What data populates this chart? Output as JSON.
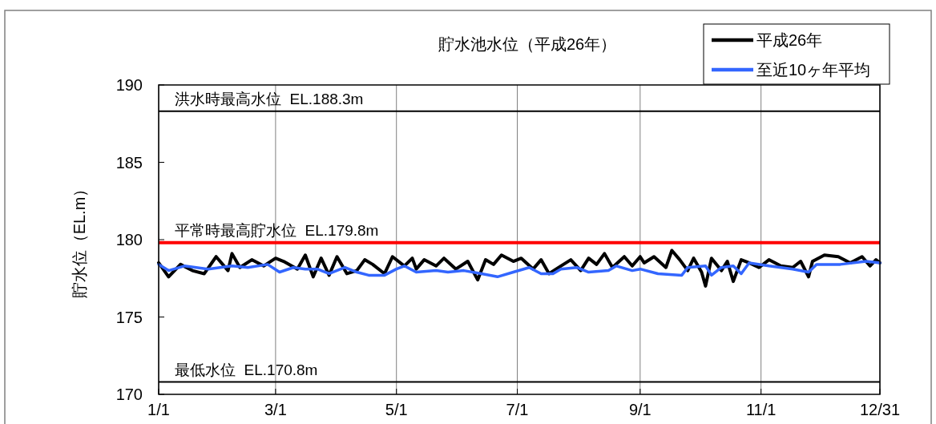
{
  "chart_data": {
    "type": "line",
    "title": "貯水池水位（平成26年）",
    "ylabel": "貯水位（EL.m）",
    "xlim": [
      "--01-01",
      "--12-31"
    ],
    "xticks": [
      {
        "value": "--01-01",
        "label": "1/1"
      },
      {
        "value": "--03-01",
        "label": "3/1"
      },
      {
        "value": "--05-01",
        "label": "5/1"
      },
      {
        "value": "--07-01",
        "label": "7/1"
      },
      {
        "value": "--09-01",
        "label": "9/1"
      },
      {
        "value": "--11-01",
        "label": "11/1"
      },
      {
        "value": "--12-31",
        "label": "12/31"
      }
    ],
    "ylim": [
      170,
      190
    ],
    "yticks": [
      170,
      175,
      180,
      185,
      190
    ],
    "grid": "x",
    "legend": "top right",
    "marker": "none",
    "line_style": "solid",
    "ref_lines": [
      {
        "axis": "y",
        "value": 188.3,
        "label": "洪水時最高水位  EL.188.3m",
        "color": "#000000"
      },
      {
        "axis": "y",
        "value": 179.8,
        "label": "平常時最高貯水位  EL.179.8m",
        "color": "#ff0000"
      },
      {
        "axis": "y",
        "value": 170.8,
        "label": "最低水位  EL.170.8m",
        "color": "#000000"
      }
    ],
    "series": [
      {
        "name": "平成26年",
        "color": "#000000",
        "x": [
          "--01-01",
          "--01-06",
          "--01-12",
          "--01-18",
          "--01-24",
          "--01-30",
          "--02-05",
          "--02-07",
          "--02-11",
          "--02-17",
          "--02-23",
          "--03-01",
          "--03-05",
          "--03-12",
          "--03-16",
          "--03-20",
          "--03-24",
          "--03-28",
          "--04-01",
          "--04-06",
          "--04-11",
          "--04-15",
          "--04-19",
          "--04-25",
          "--04-29",
          "--05-05",
          "--05-09",
          "--05-11",
          "--05-15",
          "--05-21",
          "--05-25",
          "--05-31",
          "--06-06",
          "--06-11",
          "--06-15",
          "--06-19",
          "--06-23",
          "--06-29",
          "--07-03",
          "--07-09",
          "--07-13",
          "--07-17",
          "--07-23",
          "--07-28",
          "--08-02",
          "--08-06",
          "--08-10",
          "--08-14",
          "--08-18",
          "--08-24",
          "--08-28",
          "--09-01",
          "--09-03",
          "--09-08",
          "--09-14",
          "--09-17",
          "--09-21",
          "--09-25",
          "--09-28",
          "--10-02",
          "--10-04",
          "--10-07",
          "--10-12",
          "--10-15",
          "--10-18",
          "--10-22",
          "--10-26",
          "--10-31",
          "--11-05",
          "--11-11",
          "--11-17",
          "--11-21",
          "--11-25",
          "--11-27",
          "--12-03",
          "--12-10",
          "--12-16",
          "--12-22",
          "--12-26",
          "--12-29",
          "--12-31"
        ],
        "values": [
          178.5,
          177.6,
          178.4,
          178.0,
          177.8,
          178.9,
          178.0,
          179.1,
          178.2,
          178.7,
          178.3,
          178.8,
          178.6,
          178.1,
          179.0,
          177.6,
          178.8,
          177.7,
          178.9,
          177.8,
          178.0,
          178.7,
          178.4,
          177.8,
          178.9,
          178.3,
          178.8,
          178.1,
          178.7,
          178.3,
          178.8,
          178.1,
          178.6,
          177.4,
          178.7,
          178.4,
          179.0,
          178.6,
          178.8,
          178.1,
          178.7,
          177.8,
          178.3,
          178.7,
          178.0,
          178.8,
          178.4,
          179.1,
          178.2,
          178.9,
          178.3,
          178.9,
          178.5,
          178.9,
          178.2,
          179.3,
          178.7,
          178.0,
          178.8,
          177.9,
          177.0,
          178.8,
          178.0,
          178.6,
          177.3,
          178.7,
          178.5,
          178.2,
          178.7,
          178.3,
          178.2,
          178.6,
          177.6,
          178.6,
          179.0,
          178.9,
          178.5,
          178.9,
          178.3,
          178.7,
          178.5
        ]
      },
      {
        "name": "至近10ヶ年平均",
        "color": "#3366ff",
        "x": [
          "--01-01",
          "--01-06",
          "--01-14",
          "--01-26",
          "--02-07",
          "--02-15",
          "--02-25",
          "--03-03",
          "--03-10",
          "--03-16",
          "--03-22",
          "--03-28",
          "--04-05",
          "--04-11",
          "--04-17",
          "--04-25",
          "--05-01",
          "--05-05",
          "--05-11",
          "--05-21",
          "--05-27",
          "--06-04",
          "--06-13",
          "--06-21",
          "--06-29",
          "--07-07",
          "--07-13",
          "--07-19",
          "--07-23",
          "--07-31",
          "--08-06",
          "--08-16",
          "--08-20",
          "--08-28",
          "--09-01",
          "--09-10",
          "--09-22",
          "--09-25",
          "--10-04",
          "--10-07",
          "--10-12",
          "--10-18",
          "--10-22",
          "--10-26",
          "--11-05",
          "--11-17",
          "--11-25",
          "--11-29",
          "--12-11",
          "--12-24",
          "--12-31"
        ],
        "values": [
          178.4,
          178.0,
          178.3,
          178.1,
          178.3,
          178.2,
          178.4,
          177.9,
          178.2,
          178.1,
          178.1,
          177.8,
          178.2,
          177.9,
          177.7,
          177.7,
          178.1,
          178.3,
          177.9,
          178.0,
          177.9,
          178.0,
          177.8,
          177.6,
          177.9,
          178.2,
          177.8,
          177.8,
          178.1,
          178.2,
          177.9,
          178.0,
          178.3,
          178.0,
          178.1,
          177.8,
          177.7,
          178.2,
          178.3,
          177.7,
          178.2,
          178.3,
          177.8,
          178.5,
          178.3,
          178.1,
          177.9,
          178.4,
          178.4,
          178.6,
          178.5
        ]
      }
    ]
  }
}
